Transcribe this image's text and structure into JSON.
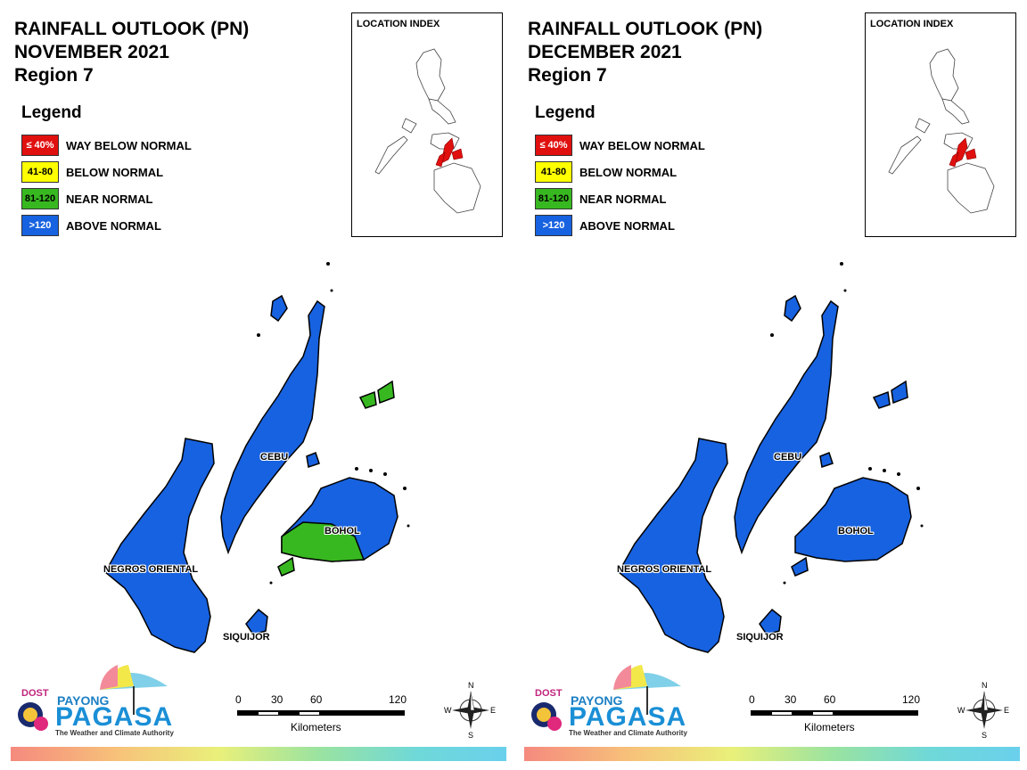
{
  "panels": [
    {
      "title_line1": "RAINFALL OUTLOOK (PN)",
      "title_line2": "NOVEMBER 2021",
      "title_line3": "Region 7",
      "legend_heading": "Legend",
      "legend": [
        {
          "swatch": "≤ 40%",
          "label": "WAY BELOW NORMAL",
          "color": "#e0100f",
          "text_color": "#ffffff"
        },
        {
          "swatch": "41-80",
          "label": "BELOW NORMAL",
          "color": "#ffff00",
          "text_color": "#000000"
        },
        {
          "swatch": "81-120",
          "label": "NEAR NORMAL",
          "color": "#38b820",
          "text_color": "#000000"
        },
        {
          "swatch": ">120",
          "label": "ABOVE NORMAL",
          "color": "#1762e0",
          "text_color": "#ffffff"
        }
      ],
      "location_index_title": "LOCATION INDEX",
      "places": {
        "cebu": "CEBU",
        "bohol": "BOHOL",
        "negros": "NEGROS ORIENTAL",
        "siquijor": "SIQUIJOR"
      },
      "bohol_status": "mixed",
      "islets_ne_color": "#38b820",
      "logo": {
        "dost": "DOST",
        "payong": "PAYONG",
        "pagasa": "PAGASA",
        "tagline": "The Weather and Climate Authority"
      },
      "scale": {
        "ticks": [
          "0",
          "30",
          "60",
          "120"
        ],
        "unit": "Kilometers"
      },
      "compass": {
        "n": "N",
        "s": "S",
        "e": "E",
        "w": "W"
      }
    },
    {
      "title_line1": "RAINFALL OUTLOOK (PN)",
      "title_line2": "DECEMBER 2021",
      "title_line3": "Region 7",
      "legend_heading": "Legend",
      "legend": [
        {
          "swatch": "≤ 40%",
          "label": "WAY BELOW NORMAL",
          "color": "#e0100f",
          "text_color": "#ffffff"
        },
        {
          "swatch": "41-80",
          "label": "BELOW NORMAL",
          "color": "#ffff00",
          "text_color": "#000000"
        },
        {
          "swatch": "81-120",
          "label": "NEAR NORMAL",
          "color": "#38b820",
          "text_color": "#000000"
        },
        {
          "swatch": ">120",
          "label": "ABOVE NORMAL",
          "color": "#1762e0",
          "text_color": "#ffffff"
        }
      ],
      "location_index_title": "LOCATION INDEX",
      "places": {
        "cebu": "CEBU",
        "bohol": "BOHOL",
        "negros": "NEGROS ORIENTAL",
        "siquijor": "SIQUIJOR"
      },
      "bohol_status": "above",
      "islets_ne_color": "#1762e0",
      "logo": {
        "dost": "DOST",
        "payong": "PAYONG",
        "pagasa": "PAGASA",
        "tagline": "The Weather and Climate Authority"
      },
      "scale": {
        "ticks": [
          "0",
          "30",
          "60",
          "120"
        ],
        "unit": "Kilometers"
      },
      "compass": {
        "n": "N",
        "s": "S",
        "e": "E",
        "w": "W"
      }
    }
  ],
  "colors": {
    "blue": "#1762e0",
    "green": "#38b820",
    "red": "#e0100f",
    "highlight_index": "#e0100f"
  }
}
